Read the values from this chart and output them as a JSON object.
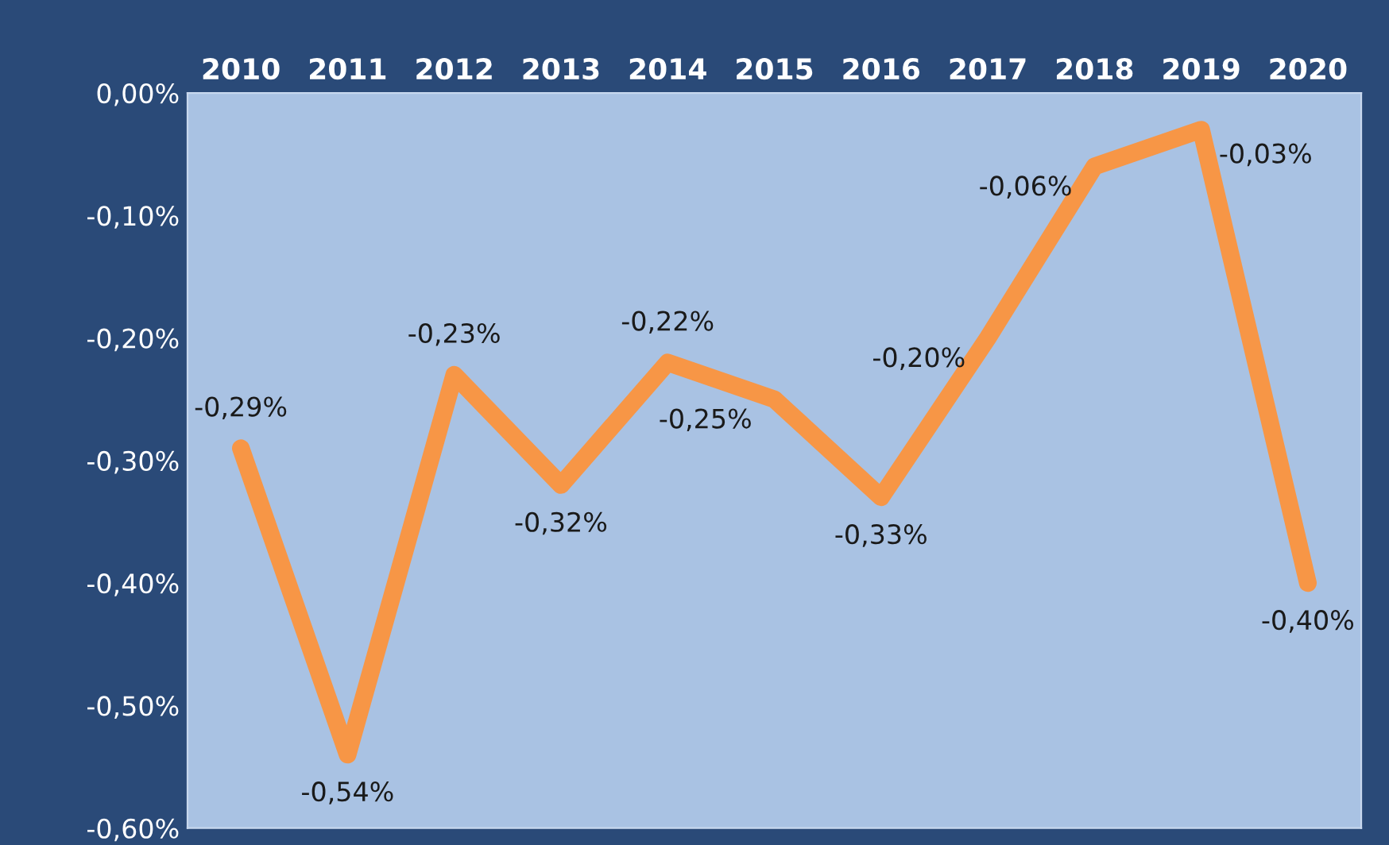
{
  "chart_data": {
    "type": "line",
    "categories": [
      "2010",
      "2011",
      "2012",
      "2013",
      "2014",
      "2015",
      "2016",
      "2017",
      "2018",
      "2019",
      "2020"
    ],
    "series": [
      {
        "color": "#f79646",
        "values": [
          -0.29,
          -0.54,
          -0.23,
          -0.32,
          -0.22,
          -0.25,
          -0.33,
          -0.2,
          -0.06,
          -0.03,
          -0.4
        ],
        "value_labels": [
          "-0,29%",
          "-0,54%",
          "-0,23%",
          "-0,32%",
          "-0,22%",
          "-0,25%",
          "-0,33%",
          "-0,20%",
          "-0,06%",
          "-0,03%",
          "-0,40%"
        ]
      }
    ],
    "ylim": [
      -0.6,
      0
    ],
    "yticks": [
      {
        "value": -0.6,
        "label": "-0,60%"
      },
      {
        "value": -0.5,
        "label": "-0,50%"
      },
      {
        "value": -0.4,
        "label": "-0,40%"
      },
      {
        "value": -0.3,
        "label": "-0,30%"
      },
      {
        "value": -0.2,
        "label": "-0,20%"
      },
      {
        "value": -0.1,
        "label": "-0,10%"
      },
      {
        "value": 0,
        "label": "0,00%"
      }
    ],
    "line_style": "solid",
    "grid": false,
    "legend": false
  }
}
